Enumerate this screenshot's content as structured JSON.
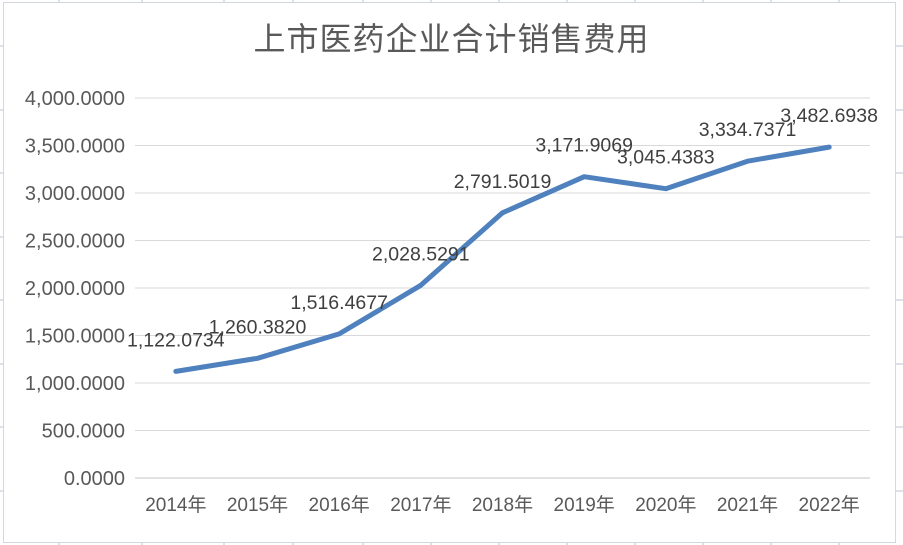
{
  "chart_data": {
    "type": "line",
    "title": "上市医药企业合计销售费用",
    "categories": [
      "2014年",
      "2015年",
      "2016年",
      "2017年",
      "2018年",
      "2019年",
      "2020年",
      "2021年",
      "2022年"
    ],
    "values": [
      1122.0734,
      1260.382,
      1516.4677,
      2028.5291,
      2791.5019,
      3171.9069,
      3045.4383,
      3334.7371,
      3482.6938
    ],
    "data_labels": [
      "1,122.0734",
      "1,260.3820",
      "1,516.4677",
      "2,028.5291",
      "2,791.5019",
      "3,171.9069",
      "3,045.4383",
      "3,334.7371",
      "3,482.6938"
    ],
    "y_tick_labels": [
      "0.0000",
      "500.0000",
      "1,000.0000",
      "1,500.0000",
      "2,000.0000",
      "2,500.0000",
      "3,000.0000",
      "3,500.0000",
      "4,000.0000"
    ],
    "ylim": [
      0,
      4000
    ],
    "y_step": 500,
    "xlabel": "",
    "ylabel": "",
    "grid": true,
    "legend": "none",
    "colors": {
      "line": "#4E81BD",
      "gridline": "#D9D9D9",
      "axis_line": "#C6C6C6",
      "axis_text": "#595959",
      "data_label_text": "#3F3F3F",
      "title_text": "#595959",
      "sheet_grid": "#C6CDDC",
      "chart_border": "#D2D7E2",
      "background": "#FFFFFF"
    }
  }
}
